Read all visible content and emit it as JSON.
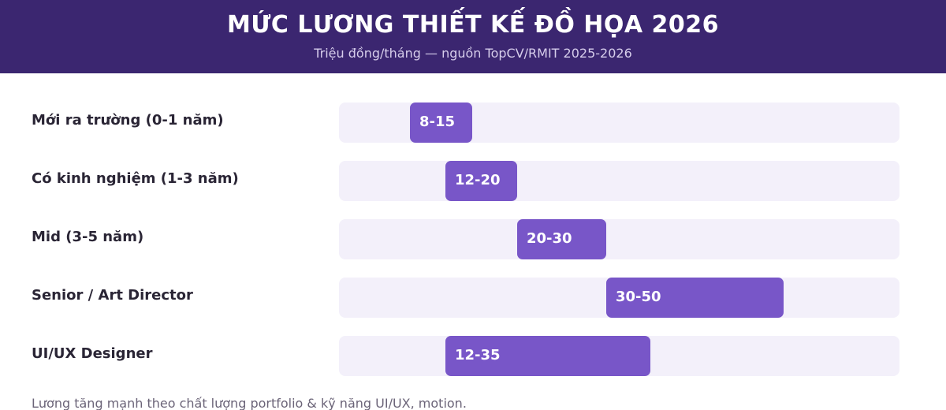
{
  "header": {
    "title": "MỨC LƯƠNG THIẾT KẾ ĐỒ HỌA 2026",
    "subtitle": "Triệu đồng/tháng — nguồn TopCV/RMIT 2025-2026"
  },
  "chart_data": {
    "type": "bar",
    "orientation": "horizontal-range",
    "title": "MỨC LƯƠNG THIẾT KẾ ĐỒ HỌA 2026",
    "subtitle": "Triệu đồng/tháng — nguồn TopCV/RMIT 2025-2026",
    "xlim": [
      0,
      63
    ],
    "categories": [
      "Mới ra trường (0-1 năm)",
      "Có kinh nghiệm (1-3 năm)",
      "Mid (3-5 năm)",
      "Senior / Art Director",
      "UI/UX Designer"
    ],
    "ranges": [
      {
        "min": 8,
        "max": 15,
        "label": "8-15"
      },
      {
        "min": 12,
        "max": 20,
        "label": "12-20"
      },
      {
        "min": 20,
        "max": 30,
        "label": "20-30"
      },
      {
        "min": 30,
        "max": 50,
        "label": "30-50"
      },
      {
        "min": 12,
        "max": 35,
        "label": "12-35"
      }
    ],
    "colors": {
      "bar": "#7856c8",
      "track": "#f3f0fa",
      "header": "#3b2670"
    },
    "grid": false,
    "legend": "none"
  },
  "footnote": "Lương tăng mạnh theo chất lượng portfolio & kỹ năng UI/UX, motion."
}
